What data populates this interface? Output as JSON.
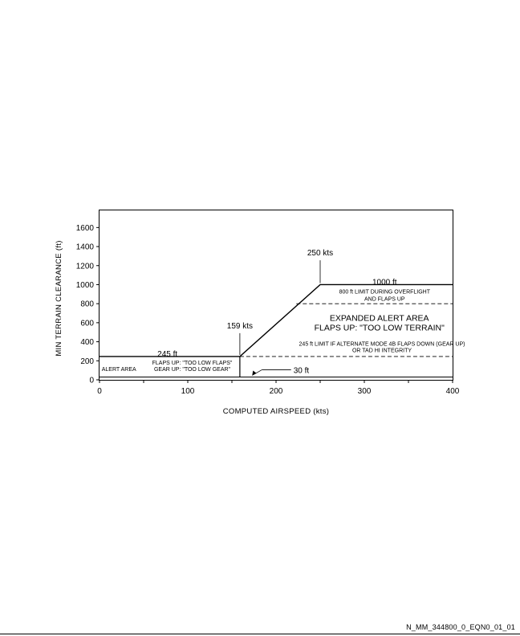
{
  "chart_data": {
    "type": "line",
    "xlabel": "COMPUTED AIRSPEED (kts)",
    "ylabel": "MIN TERRAIN CLEARANCE (ft)",
    "xlim": [
      0,
      400
    ],
    "ylim": [
      0,
      1780
    ],
    "x_ticks": [
      0,
      100,
      200,
      300,
      400
    ],
    "y_ticks": [
      0,
      200,
      400,
      600,
      800,
      1000,
      1200,
      1400,
      1600
    ],
    "grid": false,
    "boundary": {
      "x": [
        0,
        159,
        159,
        250,
        400
      ],
      "y": [
        245,
        245,
        245,
        1000,
        1000
      ]
    },
    "floor": {
      "x": [
        0,
        400
      ],
      "y": [
        30,
        30
      ]
    },
    "divider": {
      "x": [
        159,
        159
      ],
      "y": [
        30,
        245
      ]
    },
    "dashed_limits": [
      {
        "x": [
          223,
          400
        ],
        "y": [
          800,
          800
        ]
      },
      {
        "x": [
          159,
          400
        ],
        "y": [
          245,
          245
        ]
      }
    ],
    "annotations": {
      "kts_159": {
        "text": "159 kts",
        "x": 159,
        "y": 575
      },
      "kts_250": {
        "text": "250 kts",
        "x": 250,
        "y": 1340
      },
      "ft_245": {
        "text": "245 ft",
        "x": 77,
        "y": 280
      },
      "ft_1000": {
        "text": "1000 ft",
        "x": 323,
        "y": 1035
      },
      "ft_30": {
        "text": "30 ft",
        "x": 217,
        "y": 105
      },
      "limit_800": [
        "800 ft LIMIT DURING OVERFLIGHT",
        "AND FLAPS UP"
      ],
      "limit_245": [
        "245 ft LIMIT IF ALTERNATE MODE 4B FLAPS DOWN (GEAR UP)",
        "OR TAD HI INTEGRITY"
      ],
      "expanded_area": [
        "EXPANDED ALERT AREA",
        "FLAPS UP: \"TOO LOW TERRAIN\""
      ],
      "alert_area": "ALERT AREA",
      "flaps_gear": [
        "FLAPS UP: \"TOO LOW FLAPS\"",
        "GEAR UP: \"TOO LOW GEAR\""
      ]
    }
  },
  "footer": {
    "drawing_id": "N_MM_344800_0_EQN0_01_01"
  }
}
